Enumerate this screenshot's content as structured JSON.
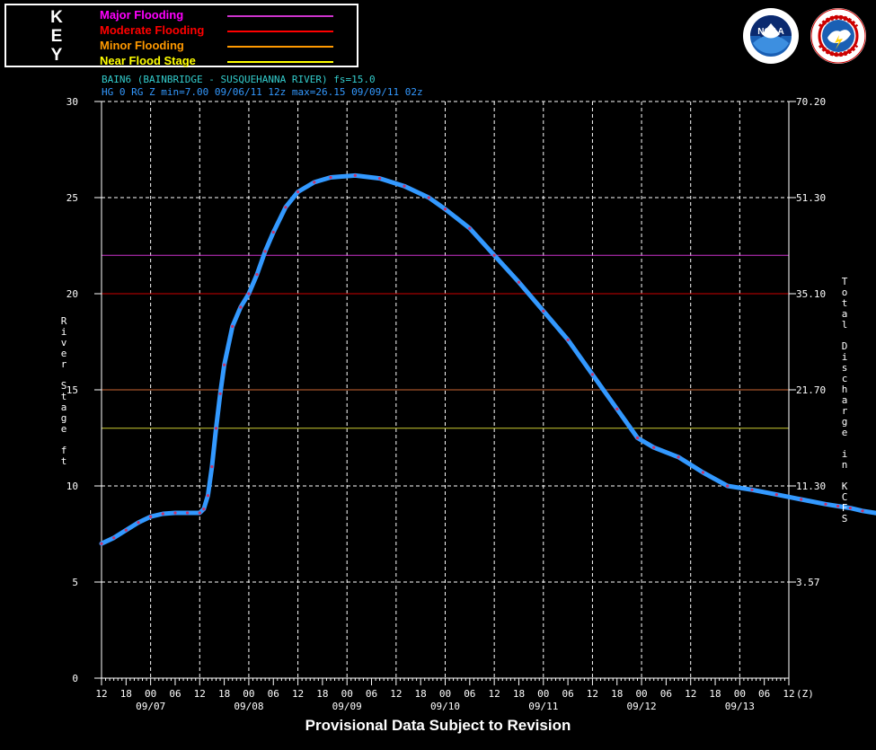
{
  "key": {
    "letters": [
      "K",
      "E",
      "Y"
    ],
    "items": [
      {
        "label": "Major Flooding",
        "color": "#ff00ff",
        "line_color": "#cc33cc"
      },
      {
        "label": "Moderate Flooding",
        "color": "#ff0000",
        "line_color": "#ff0000"
      },
      {
        "label": "Minor Flooding",
        "color": "#ff9900",
        "line_color": "#ff9900"
      },
      {
        "label": "Near Flood Stage",
        "color": "#ffff00",
        "line_color": "#ffff00"
      }
    ]
  },
  "logos": {
    "noaa": {
      "text": "NOAA",
      "icon": "noaa-logo-icon"
    },
    "nws": {
      "icon": "nws-logo-icon"
    }
  },
  "footer": {
    "note": "Provisional Data Subject to Revision"
  },
  "chart_data": {
    "type": "line",
    "title_line1": "BAIN6 (BAINBRIDGE - SUSQUEHANNA RIVER) fs=15.0",
    "title_line2": "HG 0 RG Z min=7.00 09/06/11 12z max=26.15 09/09/11 02z",
    "ylabel": "River Stage ft",
    "y2label": "Total Discharge in KCFS",
    "xunit": "(Z)",
    "ylim": [
      0,
      30
    ],
    "y_ticks": [
      0,
      5,
      10,
      15,
      20,
      25,
      30
    ],
    "y2_ticks": [
      {
        "stage": 5,
        "label": "3.57"
      },
      {
        "stage": 10,
        "label": "11.30"
      },
      {
        "stage": 15,
        "label": "21.70"
      },
      {
        "stage": 20,
        "label": "35.10"
      },
      {
        "stage": 25,
        "label": "51.30"
      },
      {
        "stage": 30,
        "label": "70.20"
      }
    ],
    "x_start": "09/06/11 12z",
    "x_tick_hours": [
      "12",
      "18",
      "00",
      "06",
      "12",
      "18",
      "00",
      "06",
      "12",
      "18",
      "00",
      "06",
      "12",
      "18",
      "00",
      "06",
      "12",
      "18",
      "00",
      "06",
      "12",
      "18",
      "00",
      "06",
      "12",
      "18",
      "00",
      "06",
      "12"
    ],
    "date_labels": [
      "09/07",
      "09/08",
      "09/09",
      "09/10",
      "09/11",
      "09/12",
      "09/13"
    ],
    "grid": true,
    "thresholds": [
      {
        "name": "Major Flooding",
        "value": 22,
        "color": "#cc33cc"
      },
      {
        "name": "Moderate Flooding",
        "value": 20,
        "color": "#cc0000"
      },
      {
        "name": "Minor Flooding",
        "value": 15,
        "color": "#cc6633"
      },
      {
        "name": "Near Flood Stage",
        "value": 13,
        "color": "#cccc33"
      }
    ],
    "series": [
      {
        "color": "#3399ff",
        "points": [
          [
            "09/06/11 12z",
            7.0
          ],
          [
            "09/06/11 15z",
            7.3
          ],
          [
            "09/06/11 18z",
            7.7
          ],
          [
            "09/06/11 21z",
            8.1
          ],
          [
            "09/07/11 00z",
            8.4
          ],
          [
            "09/07/11 03z",
            8.55
          ],
          [
            "09/07/11 06z",
            8.6
          ],
          [
            "09/07/11 09z",
            8.6
          ],
          [
            "09/07/11 12z",
            8.6
          ],
          [
            "09/07/11 13z",
            8.8
          ],
          [
            "09/07/11 14z",
            9.5
          ],
          [
            "09/07/11 15z",
            11.0
          ],
          [
            "09/07/11 16z",
            13.0
          ],
          [
            "09/07/11 17z",
            14.8
          ],
          [
            "09/07/11 18z",
            16.3
          ],
          [
            "09/07/11 20z",
            18.3
          ],
          [
            "09/07/11 22z",
            19.3
          ],
          [
            "09/08/11 00z",
            20.0
          ],
          [
            "09/08/11 02z",
            21.0
          ],
          [
            "09/08/11 04z",
            22.2
          ],
          [
            "09/08/11 06z",
            23.2
          ],
          [
            "09/08/11 09z",
            24.5
          ],
          [
            "09/08/11 12z",
            25.3
          ],
          [
            "09/08/11 16z",
            25.8
          ],
          [
            "09/08/11 20z",
            26.05
          ],
          [
            "09/09/11 02z",
            26.15
          ],
          [
            "09/09/11 08z",
            26.0
          ],
          [
            "09/09/11 14z",
            25.6
          ],
          [
            "09/09/11 20z",
            25.0
          ],
          [
            "09/10/11 00z",
            24.4
          ],
          [
            "09/10/11 06z",
            23.4
          ],
          [
            "09/10/11 12z",
            22.0
          ],
          [
            "09/10/11 18z",
            20.6
          ],
          [
            "09/11/11 00z",
            19.1
          ],
          [
            "09/11/11 06z",
            17.6
          ],
          [
            "09/11/11 12z",
            15.8
          ],
          [
            "09/11/11 18z",
            14.0
          ],
          [
            "09/11/11 23z",
            12.5
          ],
          [
            "09/12/11 03z",
            12.0
          ],
          [
            "09/12/11 09z",
            11.5
          ],
          [
            "09/12/11 15z",
            10.7
          ],
          [
            "09/12/11 21z",
            10.0
          ],
          [
            "09/13/11 03z",
            9.8
          ],
          [
            "09/13/11 09z",
            9.55
          ],
          [
            "09/13/11 15z",
            9.3
          ],
          [
            "09/13/11 21z",
            9.05
          ],
          [
            "09/14/11 00z",
            8.95
          ],
          [
            "09/14/11 03z",
            8.85
          ],
          [
            "09/14/11 06z",
            8.7
          ],
          [
            "09/14/11 12z",
            8.5
          ]
        ]
      }
    ]
  }
}
